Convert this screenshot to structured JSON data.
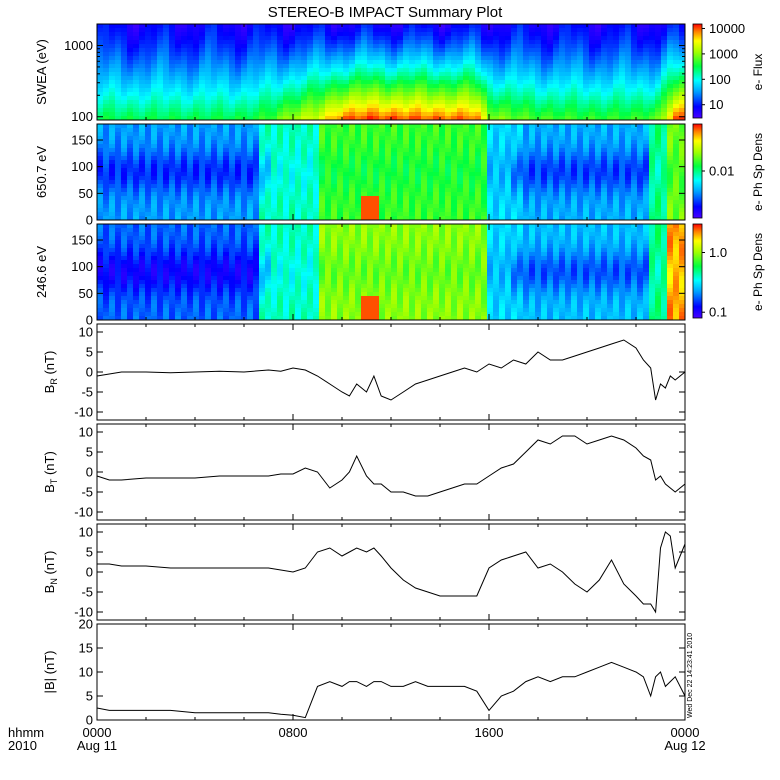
{
  "title": "STEREO-B IMPACT Summary Plot",
  "colors": {
    "axis": "#000000",
    "line": "#000000",
    "background": "#ffffff"
  },
  "time_axis": {
    "row1_label": "hhmm",
    "row2_label": "2010",
    "ticks": [
      {
        "t": 0,
        "time": "0000",
        "date": "Aug 11"
      },
      {
        "t": 8,
        "time": "0800",
        "date": ""
      },
      {
        "t": 16,
        "time": "1600",
        "date": ""
      },
      {
        "t": 24,
        "time": "0000",
        "date": "Aug 12"
      }
    ],
    "xlim": [
      0,
      24
    ]
  },
  "side_stamp": "Wed Dec 22 14:23:41 2010",
  "chart_data": [
    {
      "type": "heatmap",
      "ylabel": "SWEA (eV)",
      "yscale": "log",
      "ylim": [
        90,
        2000
      ],
      "yticks": [
        "100",
        "1000"
      ],
      "colorbar": {
        "label": "e- Flux",
        "scale": "log",
        "ticks": [
          "10",
          "100",
          "1000",
          "10000"
        ],
        "range": [
          3,
          15000
        ]
      },
      "description_values": {
        "time_hours": [
          0,
          2,
          4,
          6,
          7,
          8,
          8.5,
          9,
          10,
          11,
          12,
          13,
          14,
          15,
          15.5,
          16,
          17,
          18,
          20,
          21,
          22,
          23,
          23.5,
          24
        ],
        "low_energy_flux_level": [
          0.55,
          0.55,
          0.55,
          0.56,
          0.6,
          0.72,
          0.75,
          0.78,
          0.95,
          0.98,
          0.97,
          0.96,
          0.95,
          0.95,
          0.95,
          0.7,
          0.65,
          0.62,
          0.6,
          0.6,
          0.6,
          0.65,
          0.95,
          0.98
        ]
      }
    },
    {
      "type": "heatmap",
      "ylabel": "650.7 eV",
      "ylim": [
        0,
        180
      ],
      "yticks": [
        "0",
        "50",
        "100",
        "150"
      ],
      "colorbar": {
        "label": "e- Ph Sp Dens",
        "scale": "log",
        "ticks": [
          "0.01"
        ],
        "range": [
          0.001,
          0.1
        ]
      }
    },
    {
      "type": "heatmap",
      "ylabel": "246.6 eV",
      "ylim": [
        0,
        180
      ],
      "yticks": [
        "0",
        "50",
        "100",
        "150"
      ],
      "colorbar": {
        "label": "e- Ph Sp Dens",
        "scale": "log",
        "ticks": [
          "0.1",
          "1.0"
        ],
        "range": [
          0.08,
          3
        ]
      }
    },
    {
      "type": "line",
      "ylabel": "B_R (nT)",
      "ylabel_main": "B",
      "ylabel_sub": "R",
      "ylabel_unit": "(nT)",
      "ylim": [
        -12,
        12
      ],
      "yticks": [
        -10,
        -5,
        0,
        5,
        10
      ],
      "x": [
        0,
        0.5,
        1,
        2,
        3,
        4,
        5,
        6,
        7,
        7.5,
        8,
        8.5,
        9,
        9.5,
        10,
        10.3,
        10.6,
        11,
        11.3,
        11.6,
        12,
        12.5,
        13,
        13.5,
        14,
        14.5,
        15,
        15.5,
        16,
        16.5,
        17,
        17.5,
        18,
        18.5,
        19,
        19.5,
        20,
        20.5,
        21,
        21.5,
        22,
        22.3,
        22.6,
        22.8,
        23,
        23.2,
        23.4,
        23.6,
        24
      ],
      "y": [
        -1,
        -0.5,
        0,
        0,
        -0.2,
        0,
        0.2,
        0,
        0.5,
        0.2,
        1,
        0.5,
        -1,
        -3,
        -5,
        -6,
        -3,
        -5,
        -1,
        -6,
        -7,
        -5,
        -3,
        -2,
        -1,
        0,
        1,
        0,
        2,
        1,
        3,
        2,
        5,
        3,
        3,
        4,
        5,
        6,
        7,
        8,
        6,
        3,
        1,
        -7,
        -3,
        -4,
        -1,
        -2,
        0
      ]
    },
    {
      "type": "line",
      "ylabel": "B_T (nT)",
      "ylabel_main": "B",
      "ylabel_sub": "T",
      "ylabel_unit": "(nT)",
      "ylim": [
        -12,
        12
      ],
      "yticks": [
        -10,
        -5,
        0,
        5,
        10
      ],
      "x": [
        0,
        0.5,
        1,
        2,
        3,
        4,
        5,
        6,
        7,
        7.5,
        8,
        8.5,
        9,
        9.5,
        10,
        10.3,
        10.6,
        11,
        11.3,
        11.6,
        12,
        12.5,
        13,
        13.5,
        14,
        14.5,
        15,
        15.5,
        16,
        16.5,
        17,
        17.5,
        18,
        18.5,
        19,
        19.5,
        20,
        20.5,
        21,
        21.5,
        22,
        22.3,
        22.6,
        22.8,
        23,
        23.2,
        23.4,
        23.6,
        24
      ],
      "y": [
        -1,
        -2,
        -2,
        -1.5,
        -1.5,
        -1.5,
        -1,
        -1,
        -1,
        -0.5,
        -0.5,
        1,
        0,
        -4,
        -2,
        0,
        4,
        -1,
        -3,
        -3,
        -5,
        -5,
        -6,
        -6,
        -5,
        -4,
        -3,
        -3,
        -1,
        1,
        2,
        5,
        8,
        7,
        9,
        9,
        7,
        8,
        9,
        8,
        6,
        4,
        3,
        -2,
        -1,
        -3,
        -4,
        -5,
        -3
      ]
    },
    {
      "type": "line",
      "ylabel": "B_N (nT)",
      "ylabel_main": "B",
      "ylabel_sub": "N",
      "ylabel_unit": "(nT)",
      "ylim": [
        -12,
        12
      ],
      "yticks": [
        -10,
        -5,
        0,
        5,
        10
      ],
      "x": [
        0,
        0.5,
        1,
        2,
        3,
        4,
        5,
        6,
        7,
        7.5,
        8,
        8.5,
        9,
        9.5,
        10,
        10.3,
        10.6,
        11,
        11.3,
        11.6,
        12,
        12.5,
        13,
        13.5,
        14,
        14.5,
        15,
        15.5,
        16,
        16.5,
        17,
        17.5,
        18,
        18.5,
        19,
        19.5,
        20,
        20.5,
        21,
        21.5,
        22,
        22.3,
        22.6,
        22.8,
        23,
        23.2,
        23.4,
        23.6,
        24
      ],
      "y": [
        2,
        2,
        1.5,
        1.5,
        1,
        1,
        1,
        1,
        1,
        0.5,
        0,
        1,
        5,
        6,
        4,
        5,
        6,
        5,
        6,
        4,
        1,
        -2,
        -4,
        -5,
        -6,
        -6,
        -6,
        -6,
        1,
        3,
        4,
        5,
        1,
        2,
        0,
        -3,
        -5,
        -2,
        3,
        -3,
        -6,
        -8,
        -8,
        -10,
        6,
        10,
        9,
        1,
        7
      ]
    },
    {
      "type": "line",
      "ylabel": "|B| (nT)",
      "ylabel_main": "|B|",
      "ylabel_sub": "",
      "ylabel_unit": "(nT)",
      "ylim": [
        0,
        20
      ],
      "yticks": [
        0,
        5,
        10,
        15,
        20
      ],
      "x": [
        0,
        0.5,
        1,
        2,
        3,
        4,
        5,
        6,
        7,
        7.5,
        8,
        8.5,
        9,
        9.5,
        10,
        10.3,
        10.6,
        11,
        11.3,
        11.6,
        12,
        12.5,
        13,
        13.5,
        14,
        14.5,
        15,
        15.5,
        16,
        16.5,
        17,
        17.5,
        18,
        18.5,
        19,
        19.5,
        20,
        20.5,
        21,
        21.5,
        22,
        22.3,
        22.6,
        22.8,
        23,
        23.2,
        23.4,
        23.6,
        24
      ],
      "y": [
        2.5,
        2,
        2,
        2,
        2,
        1.5,
        1.5,
        1.5,
        1.5,
        1.2,
        1,
        0.5,
        7,
        8,
        7,
        8,
        8,
        7,
        8,
        8,
        7,
        7,
        8,
        7,
        7,
        7,
        7,
        6,
        2,
        5,
        6,
        8,
        9,
        8,
        9,
        9,
        10,
        11,
        12,
        11,
        10,
        9,
        5,
        9,
        10,
        7,
        8,
        9,
        5
      ]
    }
  ]
}
